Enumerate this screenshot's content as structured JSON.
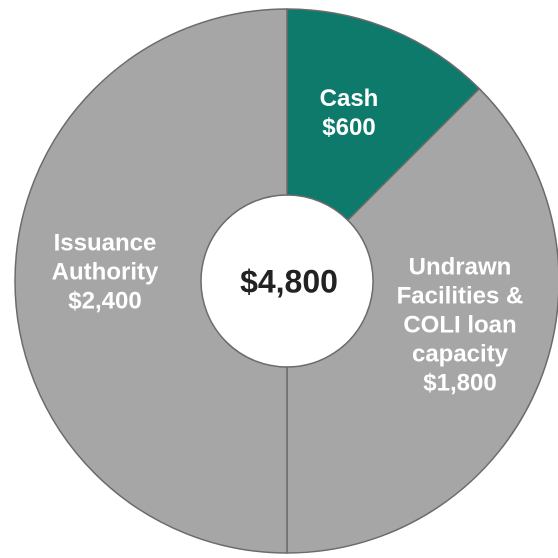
{
  "chart_data": {
    "type": "donut",
    "categories": [
      "Cash",
      "Undrawn Facilities & COLI loan capacity",
      "Issuance Authority"
    ],
    "values": [
      600,
      1800,
      2400
    ],
    "value_labels": [
      "$600",
      "$1,800",
      "$2,400"
    ],
    "colors": [
      "#0e7a6b",
      "#a6a6a6",
      "#a6a6a6"
    ],
    "center_label": "$4,800"
  }
}
